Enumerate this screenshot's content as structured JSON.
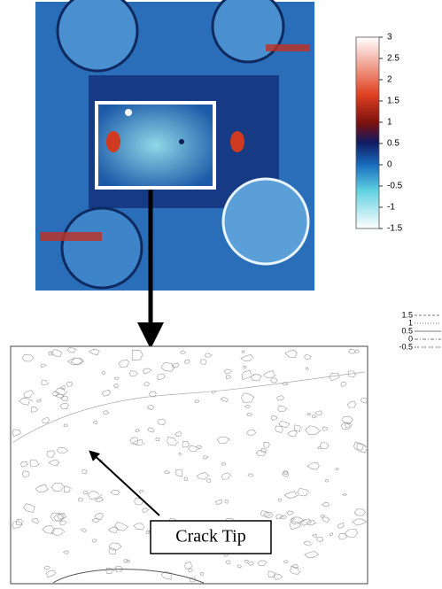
{
  "chart_data": {
    "type": "heatmap",
    "colorbar": {
      "lim": [
        -1.5,
        3
      ],
      "ticks": [
        3,
        2.5,
        2,
        1.5,
        1,
        0.5,
        0,
        -0.5,
        -1,
        -1.5
      ]
    },
    "contour_levels": [
      1.5,
      1,
      0.5,
      0,
      -0.5
    ],
    "annotation": "Crack Tip"
  }
}
